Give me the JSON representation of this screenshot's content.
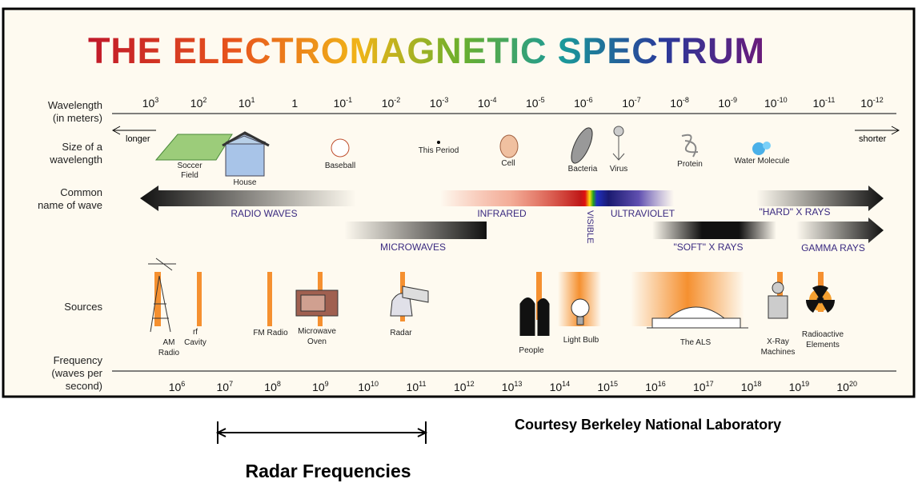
{
  "title": "THE ELECTROMAGNETIC SPECTRUM",
  "row_labels": {
    "wavelength": [
      "Wavelength",
      "(in meters)"
    ],
    "size": [
      "Size of a",
      "wavelength"
    ],
    "common_name": [
      "Common",
      "name of wave"
    ],
    "sources": [
      "Sources"
    ],
    "frequency": [
      "Frequency",
      "(waves per",
      "second)"
    ]
  },
  "wavelength_ticks": [
    {
      "base": "10",
      "exp": "3"
    },
    {
      "base": "10",
      "exp": "2"
    },
    {
      "base": "10",
      "exp": "1"
    },
    {
      "base": "1"
    },
    {
      "base": "10",
      "exp": "-1"
    },
    {
      "base": "10",
      "exp": "-2"
    },
    {
      "base": "10",
      "exp": "-3"
    },
    {
      "base": "10",
      "exp": "-4"
    },
    {
      "base": "10",
      "exp": "-5"
    },
    {
      "base": "10",
      "exp": "-6"
    },
    {
      "base": "10",
      "exp": "-7"
    },
    {
      "base": "10",
      "exp": "-8"
    },
    {
      "base": "10",
      "exp": "-9"
    },
    {
      "base": "10",
      "exp": "-10"
    },
    {
      "base": "10",
      "exp": "-11"
    },
    {
      "base": "10",
      "exp": "-12"
    }
  ],
  "size_direction": {
    "left": "longer",
    "right": "shorter"
  },
  "size_items": [
    [
      "Soccer",
      "Field"
    ],
    [
      "House"
    ],
    [
      "Baseball"
    ],
    [
      "This Period"
    ],
    [
      "Cell"
    ],
    [
      "Bacteria"
    ],
    [
      "Virus"
    ],
    [
      "Protein"
    ],
    [
      "Water Molecule"
    ]
  ],
  "wave_names": [
    "RADIO WAVES",
    "INFRARED",
    "VISIBLE",
    "ULTRAVIOLET",
    "\"HARD\" X RAYS",
    "MICROWAVES",
    "\"SOFT\" X RAYS",
    "GAMMA RAYS"
  ],
  "sources": [
    [
      "AM",
      "Radio"
    ],
    [
      "rf",
      "Cavity"
    ],
    [
      "FM Radio"
    ],
    [
      "Microwave",
      "Oven"
    ],
    [
      "Radar"
    ],
    [
      "People"
    ],
    [
      "Light Bulb"
    ],
    [
      "The ALS"
    ],
    [
      "X-Ray",
      "Machines"
    ],
    [
      "Radioactive",
      "Elements"
    ]
  ],
  "frequency_ticks": [
    {
      "base": "10",
      "exp": "6"
    },
    {
      "base": "10",
      "exp": "7"
    },
    {
      "base": "10",
      "exp": "8"
    },
    {
      "base": "10",
      "exp": "9"
    },
    {
      "base": "10",
      "exp": "10"
    },
    {
      "base": "10",
      "exp": "11"
    },
    {
      "base": "10",
      "exp": "12"
    },
    {
      "base": "10",
      "exp": "13"
    },
    {
      "base": "10",
      "exp": "14"
    },
    {
      "base": "10",
      "exp": "15"
    },
    {
      "base": "10",
      "exp": "16"
    },
    {
      "base": "10",
      "exp": "17"
    },
    {
      "base": "10",
      "exp": "18"
    },
    {
      "base": "10",
      "exp": "19"
    },
    {
      "base": "10",
      "exp": "20"
    }
  ],
  "credit": "Courtesy Berkeley National Laboratory",
  "radar_range_label": "Radar Frequencies"
}
